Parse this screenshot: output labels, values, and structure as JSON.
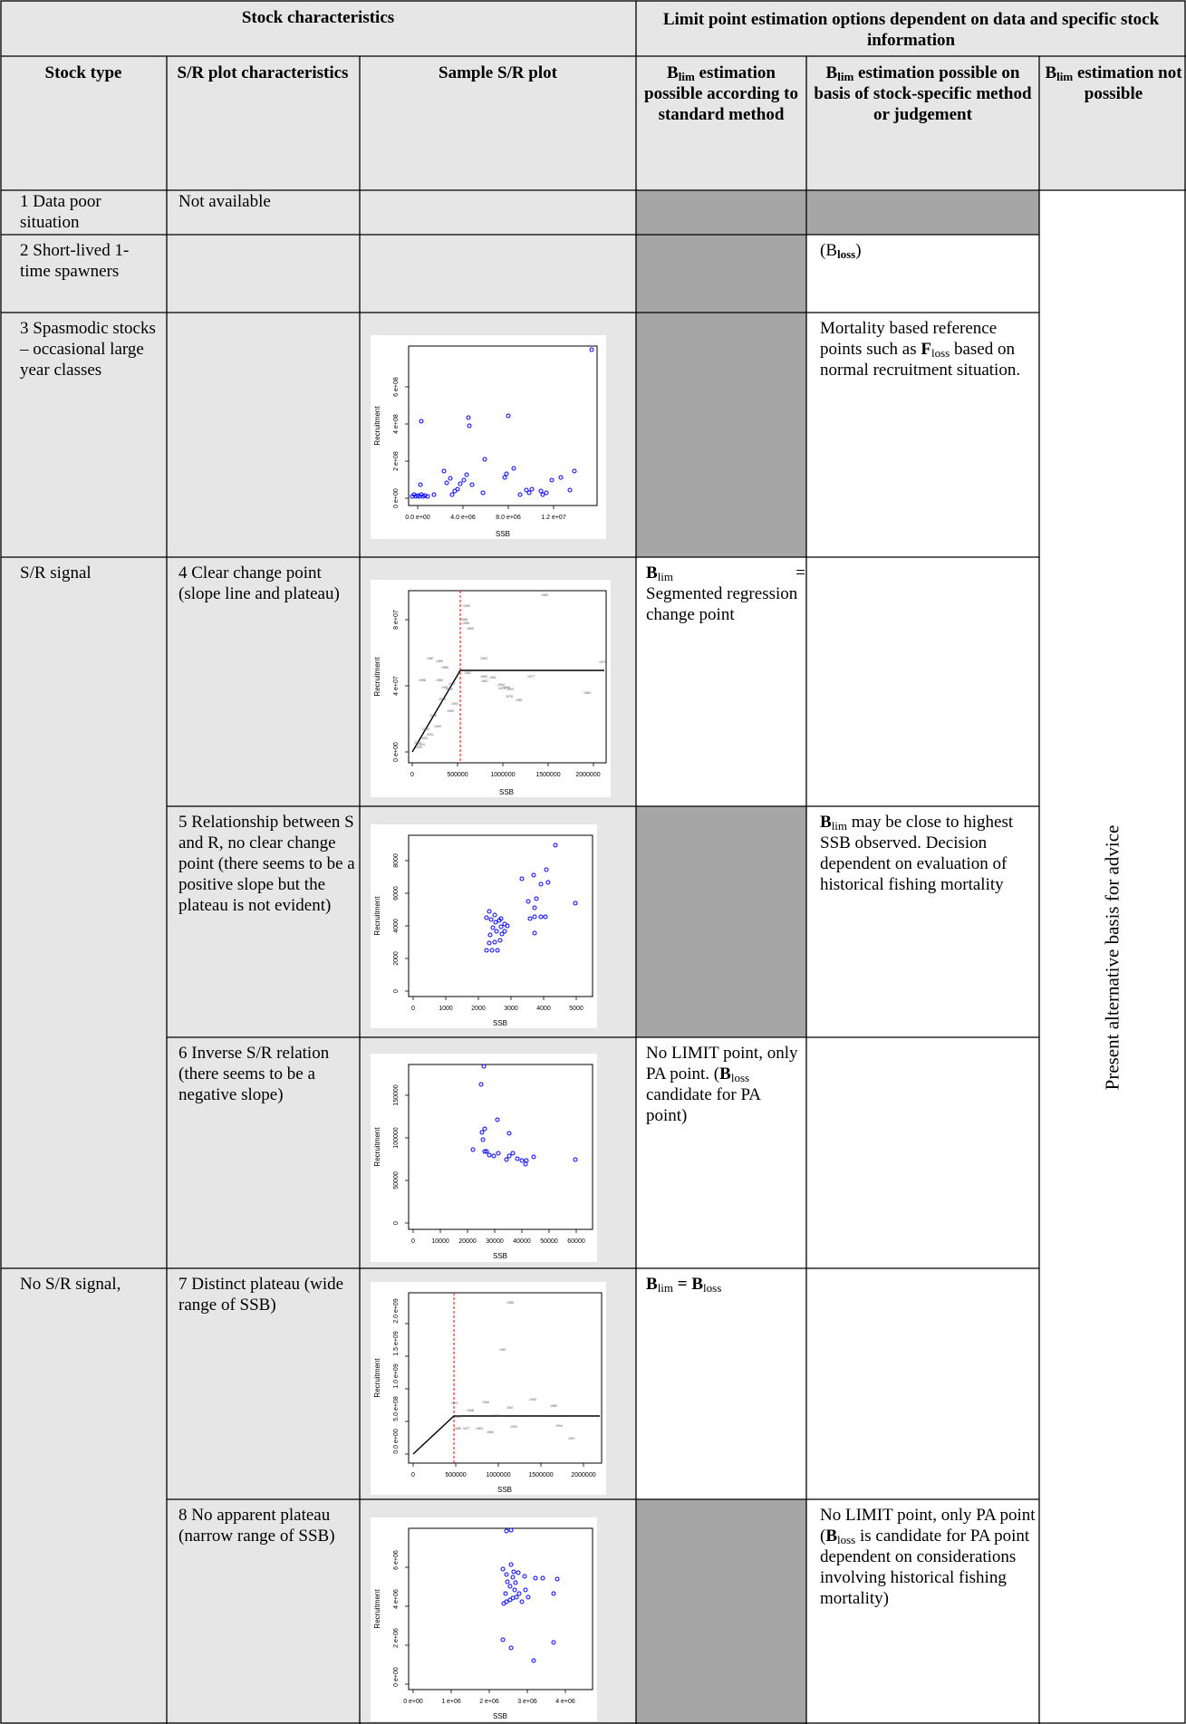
{
  "header": {
    "stock_characteristics": "Stock characteristics",
    "limit_point_options": "Limit point estimation options dependent on data and specific stock information",
    "col_stock_type": "Stock type",
    "col_sr_plot_char": "S/R plot characteristics",
    "col_sample_plot": "Sample S/R plot",
    "col_blim_standard_prefix": "B",
    "col_blim_standard_sub": "lim",
    "col_blim_standard_rest": " estimation possible according to standard method",
    "col_blim_specific_prefix": "B",
    "col_blim_specific_sub": "lim",
    "col_blim_specific_rest": " estimation possible on basis of stock-specific method or judgement",
    "col_blim_not_prefix": "B",
    "col_blim_not_sub": "lim",
    "col_blim_not_rest": " estimation not possible"
  },
  "rows": {
    "r1": {
      "stock_type": "1 Data poor situation",
      "sr_char": "Not available"
    },
    "r2": {
      "stock_type": "2  Short-lived 1-time spawners",
      "specific": "(B",
      "specific_sub": "loss",
      "specific_end": ")"
    },
    "r3": {
      "stock_type": "3 Spasmodic stocks – occasional large year classes",
      "specific_a": "Mortality based reference points such as ",
      "specific_b": "F",
      "specific_sub": "loss",
      "specific_c": " based on normal recruitment situation."
    },
    "stock_type_sr_signal": "S/R signal",
    "r4": {
      "sr_char": "4 Clear change point (slope line and plateau)",
      "standard_b": "B",
      "standard_sub": "lim",
      "standard_eq": "=",
      "standard_rest": "Segmented regression change point"
    },
    "r5": {
      "sr_char": "5 Relationship between S and R, no clear change point (there seems to be a positive slope but the plateau is not evident)",
      "specific_b": "B",
      "specific_sub": "lim",
      "specific_rest": " may be close to highest SSB observed. Decision dependent on evaluation of historical fishing mortality"
    },
    "r6": {
      "sr_char": "6 Inverse S/R relation (there seems to be a negative slope)",
      "standard_a": "No LIMIT point, only PA point. (",
      "standard_b": "B",
      "standard_sub": "loss",
      "standard_c": " candidate for PA point)"
    },
    "stock_type_no_signal": "No S/R signal,",
    "r7": {
      "sr_char": "7 Distinct plateau (wide range of SSB)",
      "standard_b1": "B",
      "standard_sub1": "lim",
      "standard_eq": " = ",
      "standard_b2": "B",
      "standard_sub2": "loss"
    },
    "r8": {
      "sr_char": "8 No apparent plateau (narrow range of SSB)",
      "specific_a": "No LIMIT point, only PA point (",
      "specific_b": "B",
      "specific_sub": "loss",
      "specific_c": " is candidate for PA point dependent on considerations involving historical fishing mortality)"
    }
  },
  "not_possible_text": "Present alternative basis for advice",
  "plots": {
    "p3": {
      "xlabel": "SSB",
      "ylabel": "Recruitment",
      "xticks": [
        "0.0 e+00",
        "4.0 e+06",
        "8.0 e+06",
        "1.2 e+07"
      ],
      "yticks": [
        "0 e+00",
        "2 e+08",
        "4 e+08",
        "6 e+08"
      ]
    },
    "p4": {
      "xlabel": "SSB",
      "ylabel": "Recruitment",
      "xticks": [
        "0",
        "500000",
        "1000000",
        "1500000",
        "2000000"
      ],
      "yticks": [
        "0 e+00",
        "4 e+07",
        "8 e+07"
      ]
    },
    "p5": {
      "xlabel": "SSB",
      "ylabel": "Recruitment",
      "xticks": [
        "0",
        "1000",
        "2000",
        "3000",
        "4000",
        "5000"
      ],
      "yticks": [
        "0",
        "2000",
        "4000",
        "6000",
        "8000"
      ]
    },
    "p6": {
      "xlabel": "SSB",
      "ylabel": "Recruitment",
      "xticks": [
        "0",
        "10000",
        "20000",
        "30000",
        "40000",
        "50000",
        "60000"
      ],
      "yticks": [
        "0",
        "50000",
        "100000",
        "150000"
      ]
    },
    "p7": {
      "xlabel": "SSB",
      "ylabel": "Recruitment",
      "xticks": [
        "0",
        "500000",
        "1000000",
        "1500000",
        "2000000"
      ],
      "yticks": [
        "0.0 e+00",
        "5.0 e+08",
        "1.0 e+09",
        "1.5 e+09",
        "2.0 e+09"
      ]
    },
    "p8": {
      "xlabel": "SSB",
      "ylabel": "Recruitment",
      "xticks": [
        "0 e+00",
        "1 e+06",
        "2 e+06",
        "3 e+06",
        "4 e+06"
      ],
      "yticks": [
        "0 e+00",
        "2 e+06",
        "4 e+06",
        "6 e+06"
      ]
    }
  },
  "colors": {
    "header_bg": "#e6e6e6",
    "shade_gray": "#a6a6a6",
    "point_blue": "#0000ff",
    "change_red": "#ff0000"
  }
}
